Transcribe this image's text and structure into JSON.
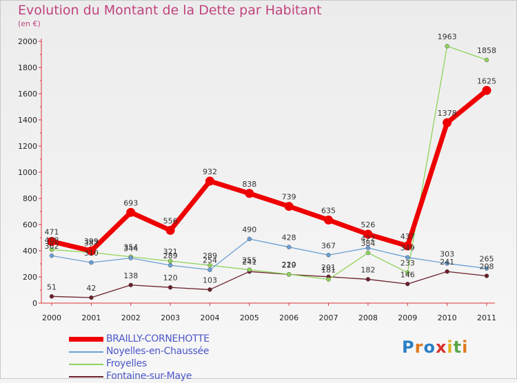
{
  "title": "Evolution du Montant de la Dette par Habitant",
  "subtitle": "(en €)",
  "logo_text": "Proxiti",
  "chart_data": {
    "type": "line",
    "title": "Evolution du Montant de la Dette par Habitant",
    "subtitle": "(en €)",
    "x": [
      "2000",
      "2001",
      "2002",
      "2003",
      "2004",
      "2005",
      "2006",
      "2007",
      "2008",
      "2009",
      "2010",
      "2011"
    ],
    "yticks": [
      "0",
      "200",
      "400",
      "600",
      "800",
      "1000",
      "1200",
      "1400",
      "1600",
      "1800",
      "2000"
    ],
    "ylim": [
      0,
      2000
    ],
    "grid": false,
    "legend_position": "bottom-left",
    "series": [
      {
        "name": "BRAILLY-CORNEHOTTE",
        "color": "#ee0000",
        "values": [
          471,
          399,
          693,
          556,
          932,
          838,
          739,
          635,
          526,
          437,
          1378,
          1625
        ]
      },
      {
        "name": "Noyelles-en-Chaussée",
        "color": "#6a9fd4",
        "values": [
          362,
          310,
          344,
          289,
          254,
          490,
          428,
          367,
          422,
          349,
          303,
          265
        ]
      },
      {
        "name": "Froyelles",
        "color": "#8fd45a",
        "values": [
          408,
          387,
          354,
          321,
          289,
          255,
          220,
          181,
          384,
          233,
          1963,
          1858
        ]
      },
      {
        "name": "Fontaine-sur-Maye",
        "color": "#6b1f2a",
        "values": [
          51,
          42,
          138,
          120,
          103,
          241,
          219,
          201,
          182,
          146,
          241,
          208
        ]
      }
    ]
  }
}
